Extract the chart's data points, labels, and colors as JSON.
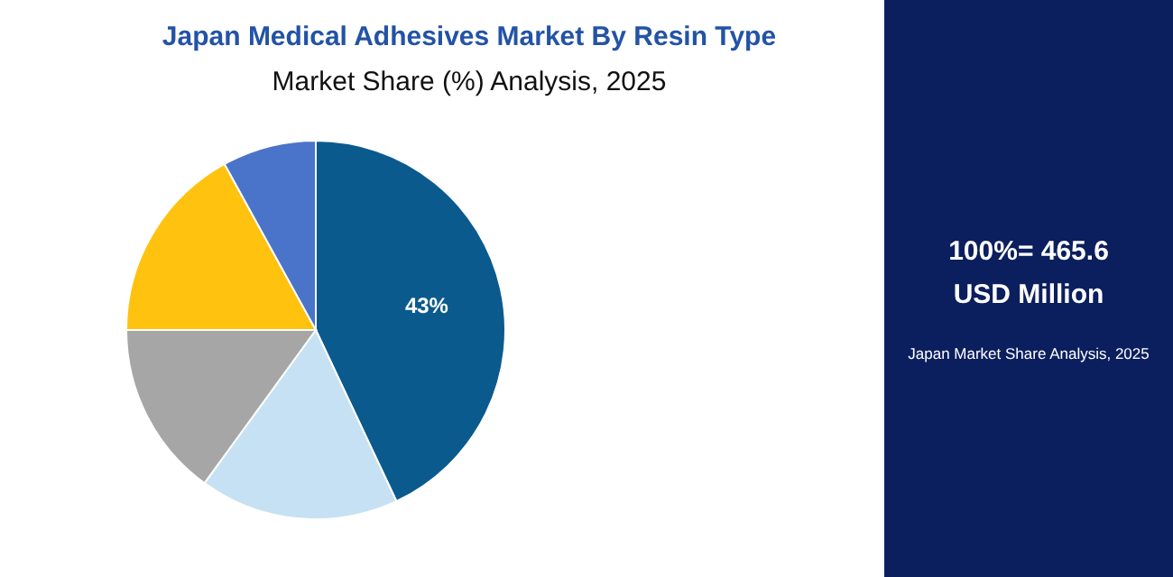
{
  "chart_data": {
    "type": "pie",
    "title": "Japan Medical Adhesives Market By Resin Type",
    "subtitle": "Market Share (%) Analysis, 2025",
    "categories": [
      null,
      null,
      null,
      null,
      null
    ],
    "values": [
      43,
      17,
      15,
      17,
      8
    ],
    "colors": [
      "#0b5a8e",
      "#c6e1f3",
      "#a6a6a6",
      "#ffc20e",
      "#4a74c9"
    ],
    "value_labels": [
      "43%",
      null,
      null,
      null,
      null
    ],
    "annotations": [
      "100%= 465.6 USD Million",
      "Japan Market Share Analysis, 2025"
    ]
  }
}
